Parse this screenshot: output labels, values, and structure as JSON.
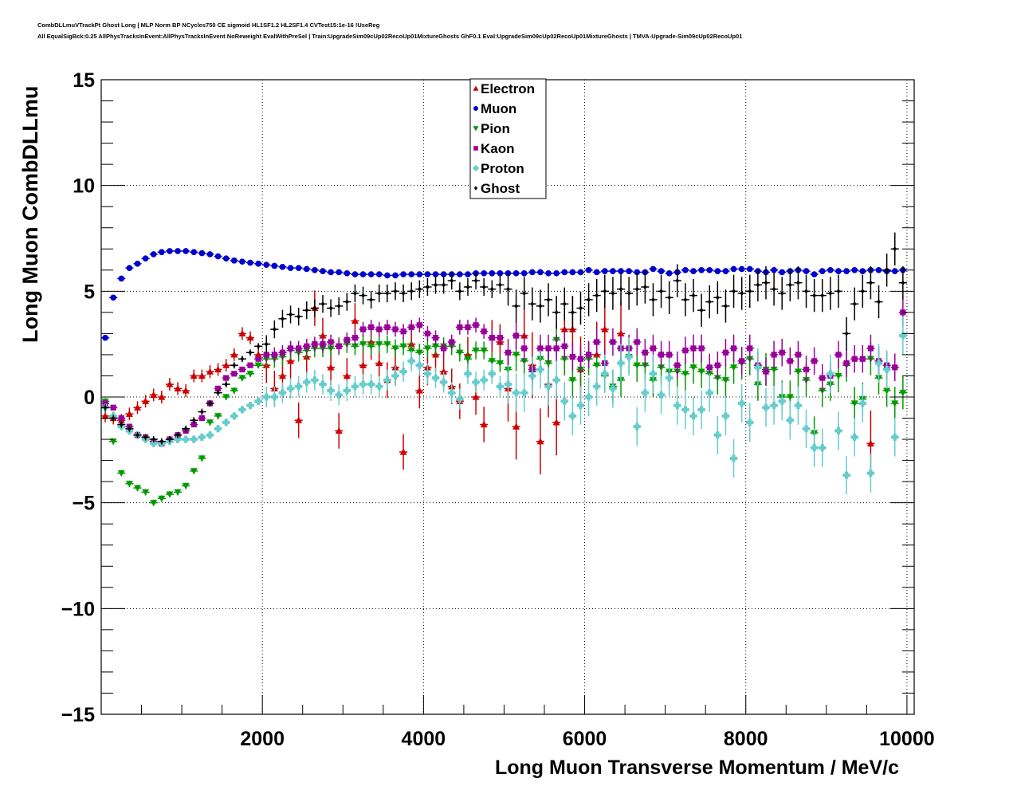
{
  "header": {
    "title_line1": "CombDLLmuVTrackPt Ghost Long | MLP Norm BP NCycles750 CE sigmoid HL1SF1.2 HL2SF1.4 CVTest15:1e-16 !UseReg",
    "title_line2": "All EqualSigBck:0.25 AllPhysTracksInEvent:AllPhysTracksInEvent NoReweight EvalWithPreSel | Train:UpgradeSim09cUp02RecoUp01MixtureGhosts GhF0.1 Eval:UpgradeSim09cUp02RecoUp01MixtureGhosts | TMVA-Upgrade-Sim09cUp02RecoUp01"
  },
  "chart_data": {
    "type": "scatter",
    "title": "CombDLLmuVTrackPt Ghost Long",
    "xlabel": "Long Muon Transverse Momentum / MeV/c",
    "ylabel": "Long Muon CombDLLmu",
    "xlim": [
      0,
      10090
    ],
    "ylim": [
      -15,
      15
    ],
    "xticks": [
      2000,
      4000,
      6000,
      8000,
      10000
    ],
    "xtick_labels": [
      "2000",
      "4000",
      "6000",
      "8000",
      "10000"
    ],
    "yticks": [
      -15,
      -10,
      -5,
      0,
      5,
      10,
      15
    ],
    "ytick_labels": [
      "−15",
      "−10",
      "−5",
      "0",
      "5",
      "10",
      "15"
    ],
    "grid": true,
    "legend_position": "top-center",
    "x": [
      50,
      150,
      250,
      350,
      450,
      550,
      650,
      750,
      850,
      950,
      1050,
      1150,
      1250,
      1350,
      1450,
      1550,
      1650,
      1750,
      1850,
      1950,
      2050,
      2150,
      2250,
      2350,
      2450,
      2550,
      2650,
      2750,
      2850,
      2950,
      3050,
      3150,
      3250,
      3350,
      3450,
      3550,
      3650,
      3750,
      3850,
      3950,
      4050,
      4150,
      4250,
      4350,
      4450,
      4550,
      4650,
      4750,
      4850,
      4950,
      5050,
      5150,
      5250,
      5350,
      5450,
      5550,
      5650,
      5750,
      5850,
      5950,
      6050,
      6150,
      6250,
      6350,
      6450,
      6550,
      6650,
      6750,
      6850,
      6950,
      7050,
      7150,
      7250,
      7350,
      7450,
      7550,
      7650,
      7750,
      7850,
      7950,
      8050,
      8150,
      8250,
      8350,
      8450,
      8550,
      8650,
      8750,
      8850,
      8950,
      9050,
      9150,
      9250,
      9350,
      9450,
      9550,
      9650,
      9750,
      9850,
      9950
    ],
    "series": [
      {
        "name": "Electron",
        "color": "#cc0000",
        "marker": "triangle-up",
        "values": [
          -0.9,
          -1.0,
          -1.1,
          -0.8,
          -0.5,
          -0.2,
          0.1,
          0.0,
          0.6,
          0.4,
          0.3,
          1.0,
          1.0,
          1.2,
          1.3,
          1.5,
          2.0,
          3.0,
          2.8,
          2.0,
          1.5,
          0.4,
          1.0,
          1.7,
          -1.1,
          1.9,
          4.2,
          2.9,
          1.4,
          -1.6,
          1.0,
          3.6,
          1.5,
          2.6,
          1.6,
          0.8,
          1.4,
          -2.6,
          2.5,
          0.3,
          1.4,
          2.0,
          1.2,
          0.5,
          -0.2,
          2.0,
          0.0,
          -1.3,
          2.8,
          2.6,
          0.4,
          -1.4,
          2.9,
          1.5,
          -2.1,
          0.6,
          -1.2,
          3.2,
          3.2,
          1.3,
          null,
          2.0,
          3.2,
          null,
          3.0,
          null,
          null,
          null,
          null,
          null,
          null,
          null,
          null,
          null,
          null,
          null,
          null,
          null,
          null,
          null,
          null,
          null,
          null,
          null,
          null,
          null,
          null,
          null,
          null,
          null,
          null,
          null,
          null,
          null,
          null,
          -2.2,
          null,
          null,
          null,
          null
        ]
      },
      {
        "name": "Muon",
        "color": "#0000cc",
        "marker": "circle",
        "values": [
          2.8,
          4.7,
          5.6,
          6.1,
          6.3,
          6.55,
          6.75,
          6.85,
          6.9,
          6.9,
          6.9,
          6.85,
          6.8,
          6.75,
          6.65,
          6.55,
          6.45,
          6.4,
          6.35,
          6.3,
          6.25,
          6.2,
          6.15,
          6.1,
          6.1,
          6.05,
          6.0,
          5.95,
          5.9,
          5.9,
          5.85,
          5.8,
          5.8,
          5.8,
          5.8,
          5.75,
          5.75,
          5.8,
          5.8,
          5.8,
          5.8,
          5.8,
          5.8,
          5.8,
          5.8,
          5.8,
          5.85,
          5.85,
          5.85,
          5.85,
          5.85,
          5.85,
          5.85,
          5.9,
          5.9,
          5.85,
          5.85,
          5.9,
          5.9,
          5.9,
          6.0,
          5.9,
          5.95,
          5.95,
          5.95,
          5.95,
          5.9,
          5.9,
          6.05,
          5.95,
          5.85,
          5.9,
          6.0,
          5.95,
          6.0,
          6.0,
          5.95,
          5.95,
          6.05,
          6.05,
          6.05,
          5.95,
          5.9,
          6.0,
          5.9,
          5.95,
          6.0,
          5.95,
          5.8,
          5.95,
          6.0,
          5.95,
          5.95,
          6.0,
          5.95,
          6.0,
          6.0,
          5.95,
          5.95,
          6.0
        ]
      },
      {
        "name": "Pion",
        "color": "#009900",
        "marker": "triangle-down",
        "values": [
          -0.2,
          -2.1,
          -3.6,
          -4.1,
          -4.3,
          -4.5,
          -5.0,
          -4.8,
          -4.6,
          -4.5,
          -4.2,
          -3.5,
          -2.9,
          -1.2,
          -0.9,
          0.0,
          0.3,
          0.9,
          1.1,
          1.5,
          1.8,
          1.8,
          1.9,
          2.2,
          2.1,
          2.2,
          2.3,
          2.3,
          2.3,
          2.4,
          2.5,
          2.4,
          2.5,
          2.4,
          2.5,
          2.5,
          2.3,
          2.4,
          2.2,
          2.1,
          2.3,
          2.4,
          2.4,
          2.4,
          2.1,
          1.8,
          2.2,
          2.2,
          1.7,
          1.6,
          1.3,
          2.0,
          1.7,
          1.2,
          1.8,
          1.6,
          2.7,
          1.8,
          0.8,
          1.3,
          1.8,
          1.5,
          1.0,
          0.5,
          0.8,
          1.9,
          1.5,
          1.5,
          0.8,
          1.4,
          1.2,
          1.2,
          1.1,
          1.4,
          1.2,
          1.1,
          0.9,
          0.8,
          1.4,
          1.6,
          1.8,
          0.6,
          1.3,
          1.3,
          0.0,
          0.0,
          1.2,
          0.8,
          -1.7,
          0.3,
          0.6,
          1.0,
          1.5,
          -0.3,
          -0.1,
          1.8,
          0.9,
          0.3,
          -0.3,
          0.2
        ]
      },
      {
        "name": "Kaon",
        "color": "#990099",
        "marker": "square",
        "values": [
          -0.3,
          -0.5,
          -1.0,
          -1.4,
          -1.8,
          -1.9,
          -2.1,
          -2.2,
          -2.0,
          -1.8,
          -1.6,
          -1.3,
          -1.0,
          -0.3,
          0.4,
          0.9,
          1.1,
          1.3,
          1.5,
          1.8,
          2.0,
          2.0,
          2.1,
          2.3,
          2.3,
          2.4,
          2.5,
          2.5,
          2.6,
          2.4,
          2.7,
          2.8,
          3.2,
          3.3,
          3.2,
          3.3,
          3.2,
          3.1,
          3.3,
          3.4,
          3.0,
          2.8,
          2.3,
          2.6,
          3.3,
          3.3,
          3.4,
          3.1,
          2.8,
          2.8,
          2.1,
          2.9,
          2.3,
          1.3,
          2.3,
          2.3,
          2.3,
          2.4,
          1.9,
          1.8,
          2.0,
          2.6,
          1.6,
          2.6,
          2.3,
          2.3,
          2.6,
          2.1,
          2.3,
          2.0,
          2.0,
          1.5,
          2.2,
          2.3,
          2.3,
          1.4,
          1.5,
          2.1,
          2.3,
          1.7,
          2.3,
          1.5,
          1.2,
          2.0,
          2.1,
          1.7,
          2.0,
          1.3,
          1.7,
          0.9,
          1.0,
          2.0,
          1.6,
          1.8,
          1.8,
          2.3,
          1.7,
          1.5,
          1.4,
          4.0
        ]
      },
      {
        "name": "Proton",
        "color": "#66cccc",
        "marker": "cross",
        "values": [
          -0.5,
          -0.9,
          -1.4,
          -1.6,
          -1.8,
          -2.0,
          -2.2,
          -2.2,
          -2.1,
          -2.0,
          -2.0,
          -2.0,
          -1.9,
          -1.8,
          -1.5,
          -1.2,
          -0.9,
          -0.6,
          -0.4,
          -0.2,
          0.0,
          0.0,
          0.2,
          0.4,
          0.5,
          0.7,
          0.8,
          0.6,
          0.3,
          0.1,
          0.3,
          0.5,
          0.6,
          0.6,
          0.5,
          0.8,
          1.0,
          1.2,
          1.7,
          1.5,
          1.1,
          0.9,
          0.7,
          0.2,
          -0.1,
          1.1,
          0.7,
          0.8,
          1.1,
          0.5,
          0.6,
          0.2,
          0.2,
          1.0,
          1.3,
          0.5,
          0.8,
          -0.2,
          -0.9,
          -0.4,
          0.0,
          0.5,
          1.1,
          0.4,
          1.6,
          1.9,
          -1.4,
          0.2,
          1.1,
          0.1,
          0.9,
          -0.4,
          -0.6,
          -0.9,
          -0.6,
          0.2,
          -1.8,
          -0.9,
          -2.9,
          -0.3,
          -1.2,
          1.4,
          -0.5,
          -0.4,
          -0.2,
          -1.1,
          -0.4,
          -1.5,
          -2.4,
          -2.4,
          1.1,
          -1.6,
          -3.7,
          -1.9,
          -0.3,
          -3.6,
          1.6,
          1.3,
          -1.9,
          2.9
        ]
      },
      {
        "name": "Ghost",
        "color": "#000000",
        "marker": "diamond",
        "values": [
          -0.5,
          -1.0,
          -1.3,
          -1.5,
          -1.8,
          -1.9,
          -2.0,
          -2.1,
          -2.0,
          -1.8,
          -1.5,
          -1.1,
          -0.7,
          -0.3,
          0.2,
          0.6,
          1.5,
          1.8,
          2.1,
          2.4,
          2.5,
          3.2,
          3.7,
          3.9,
          3.8,
          4.1,
          4.2,
          4.4,
          4.2,
          4.3,
          4.5,
          4.9,
          4.8,
          4.6,
          4.9,
          4.9,
          5.0,
          4.9,
          5.0,
          5.1,
          5.2,
          5.3,
          5.3,
          5.5,
          5.0,
          5.2,
          5.5,
          5.2,
          5.1,
          5.3,
          5.1,
          4.3,
          4.9,
          4.4,
          4.3,
          4.6,
          4.0,
          4.4,
          4.0,
          4.2,
          4.6,
          4.8,
          5.0,
          4.9,
          5.1,
          4.9,
          5.1,
          5.2,
          4.6,
          5.0,
          4.7,
          5.5,
          4.6,
          4.8,
          4.1,
          4.5,
          4.7,
          4.3,
          5.0,
          4.9,
          5.0,
          5.3,
          5.4,
          5.1,
          4.9,
          5.3,
          5.4,
          5.0,
          4.8,
          4.8,
          4.9,
          5.0,
          3.0,
          4.4,
          5.0,
          5.4,
          4.5,
          6.0,
          7.0,
          5.4
        ]
      }
    ]
  }
}
